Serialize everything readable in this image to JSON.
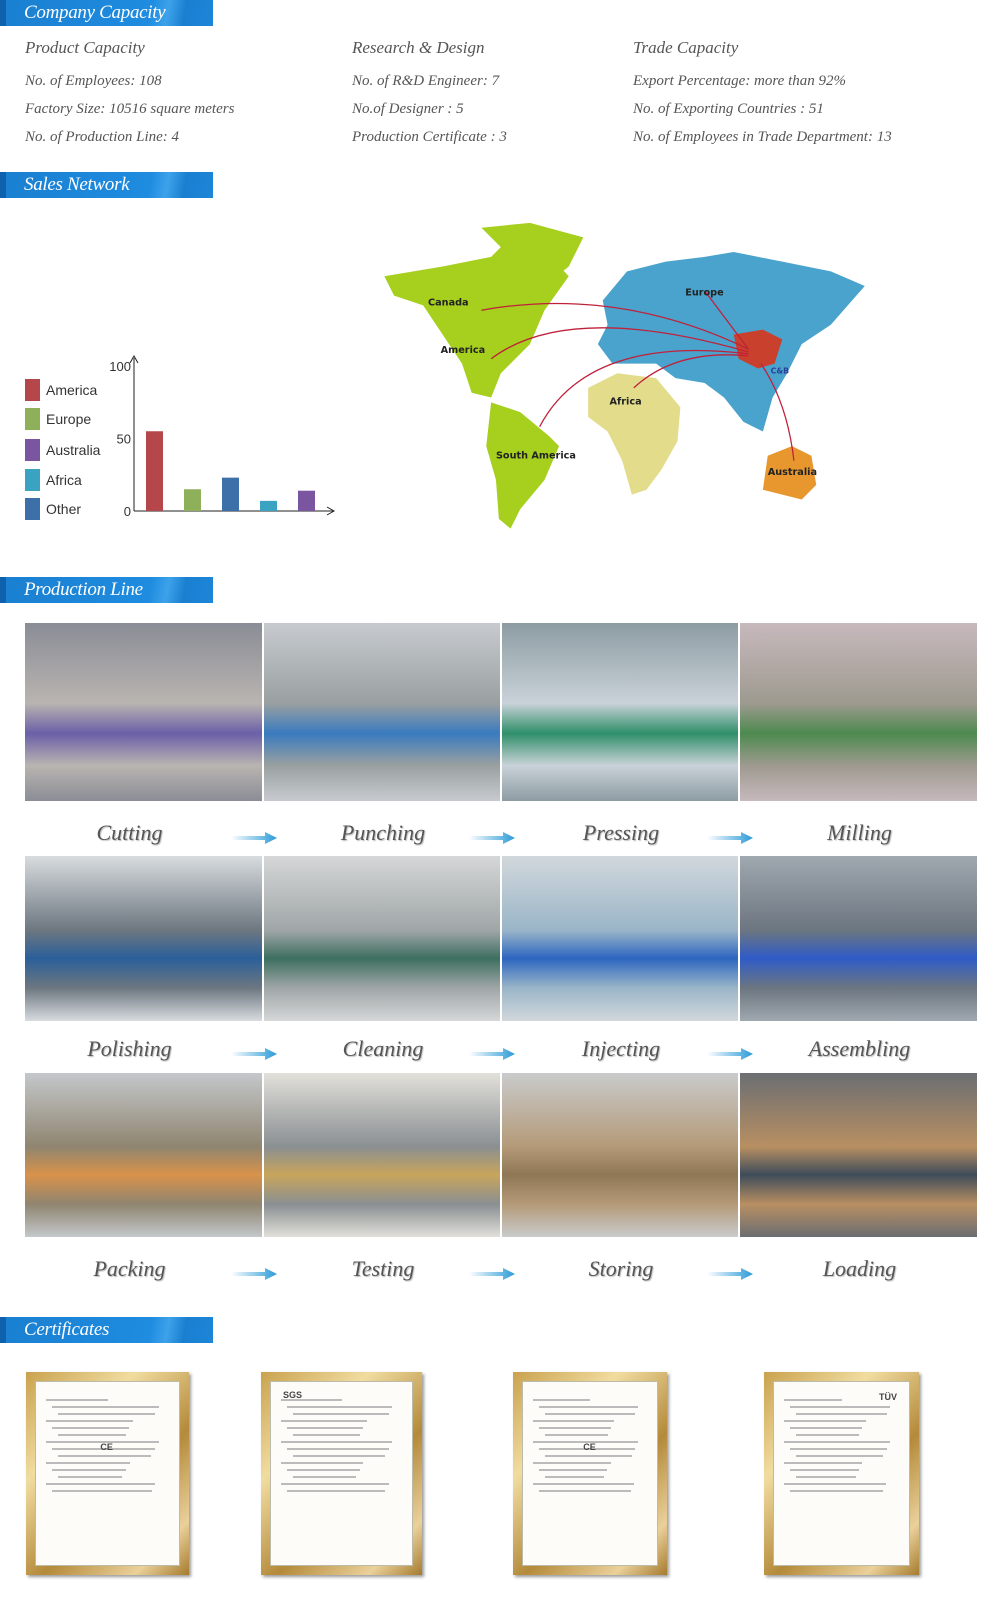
{
  "sections": {
    "company_capacity": "Company Capacity",
    "sales_network": "Sales Network",
    "production_line": "Production Line",
    "certificates": "Certificates"
  },
  "capacity": {
    "columns": [
      {
        "heading": "Product Capacity",
        "rows": [
          "No. of Employees: 108",
          "Factory Size: 10516 square meters",
          "No. of Production Line:  4"
        ]
      },
      {
        "heading": "Research & Design",
        "rows": [
          "No. of  R&D Engineer: 7",
          "No.of Designer : 5",
          "Production Certificate : 3"
        ]
      },
      {
        "heading": "Trade Capacity",
        "rows": [
          "Export Percentage: more than 92%",
          "No. of Exporting Countries : 51",
          "No. of Employees in Trade Department: 13"
        ]
      }
    ]
  },
  "chart_data": {
    "type": "bar",
    "categories": [
      "America",
      "Europe",
      "Other",
      "Africa",
      "Australia"
    ],
    "values": [
      55,
      15,
      23,
      7,
      14
    ],
    "colors": [
      "#b5474b",
      "#8fb05a",
      "#3d6fa8",
      "#3aa3c2",
      "#7a55a0"
    ],
    "ylim": [
      0,
      100
    ],
    "yticks": [
      "100",
      "50",
      "0"
    ],
    "legend": [
      {
        "name": "America",
        "color": "#b5474b"
      },
      {
        "name": "Europe",
        "color": "#8fb05a"
      },
      {
        "name": "Australia",
        "color": "#7a55a0"
      },
      {
        "name": "Africa",
        "color": "#3aa3c2"
      },
      {
        "name": "Other",
        "color": "#3d6fa8"
      }
    ],
    "legend_position": "left"
  },
  "map": {
    "labels": [
      "Canada",
      "America",
      "Europe",
      "Africa",
      "South America",
      "Australia"
    ],
    "logo": "C&B",
    "colors": {
      "americas": "#a6cf1e",
      "eurasia": "#4aa3cc",
      "africa": "#e3dc8a",
      "australia": "#e8972e",
      "china": "#c9402c",
      "routes": "#c0203a"
    }
  },
  "production": {
    "steps": [
      "Cutting",
      "Punching",
      "Pressing",
      "Milling",
      "Polishing",
      "Cleaning",
      "Injecting",
      "Assembling",
      "Packing",
      "Testing",
      "Storing",
      "Loading"
    ],
    "arrow_color": "#2a9ad8"
  },
  "certificates": {
    "marks": [
      "CE",
      "SGS",
      "CE",
      "TÜV"
    ]
  }
}
